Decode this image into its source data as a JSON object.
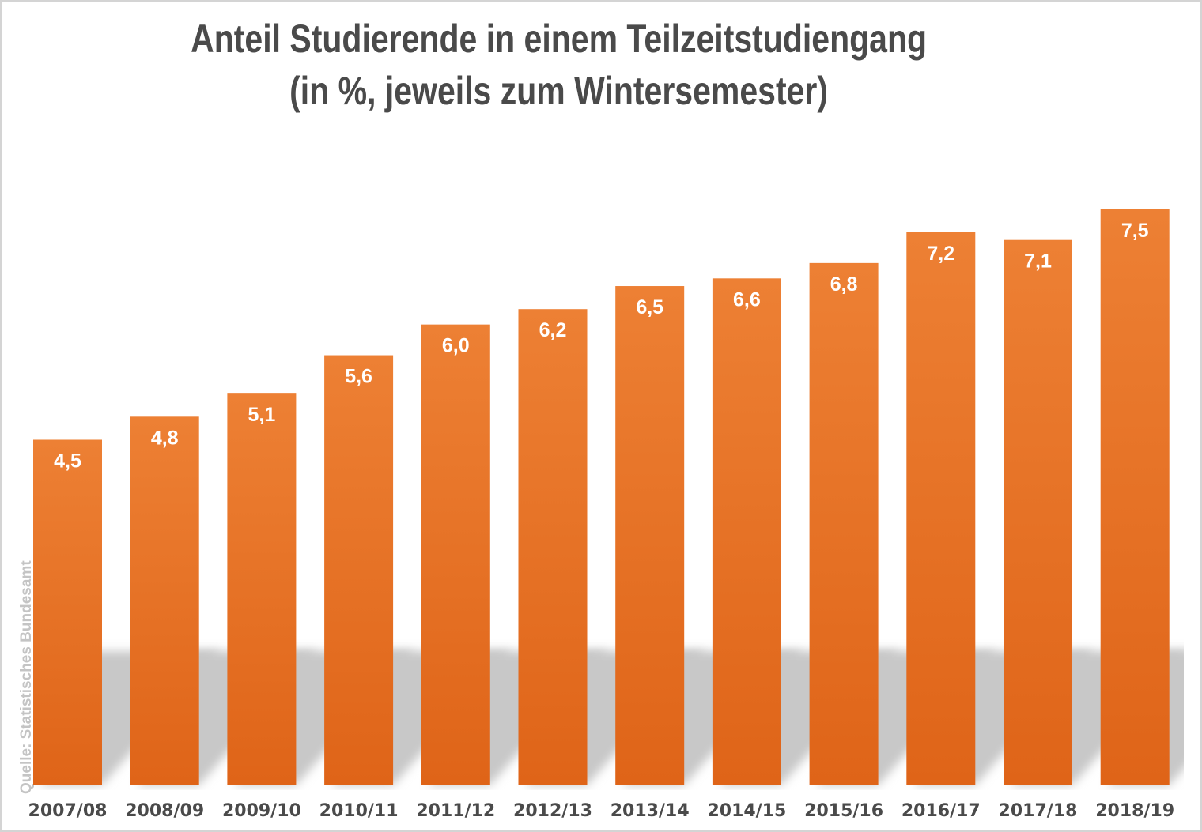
{
  "chart_data": {
    "type": "bar",
    "title": "Anteil Studierende in einem Teilzeitstudiengang",
    "subtitle": "(in %, jeweils zum Wintersemester)",
    "categories": [
      "2007/08",
      "2008/09",
      "2009/10",
      "2010/11",
      "2011/12",
      "2012/13",
      "2013/14",
      "2014/15",
      "2015/16",
      "2016/17",
      "2017/18",
      "2018/19"
    ],
    "values": [
      4.5,
      4.8,
      5.1,
      5.6,
      6.0,
      6.2,
      6.5,
      6.6,
      6.8,
      7.2,
      7.1,
      7.5
    ],
    "data_labels": [
      "4,5",
      "4,8",
      "5,1",
      "5,6",
      "6,0",
      "6,2",
      "6,5",
      "6,6",
      "6,8",
      "7,2",
      "7,1",
      "7,5"
    ],
    "xlabel": "",
    "ylabel": "",
    "ylim": [
      0,
      9.73
    ],
    "grid": false,
    "legend": "none",
    "source": "Quelle: Statistisches Bundesamt",
    "colors": {
      "bar_top": "#ed8034",
      "bar_bottom": "#df6418",
      "shadow": "#c8c8c8",
      "text": "#4a4a4a",
      "label": "#ffffff"
    }
  }
}
